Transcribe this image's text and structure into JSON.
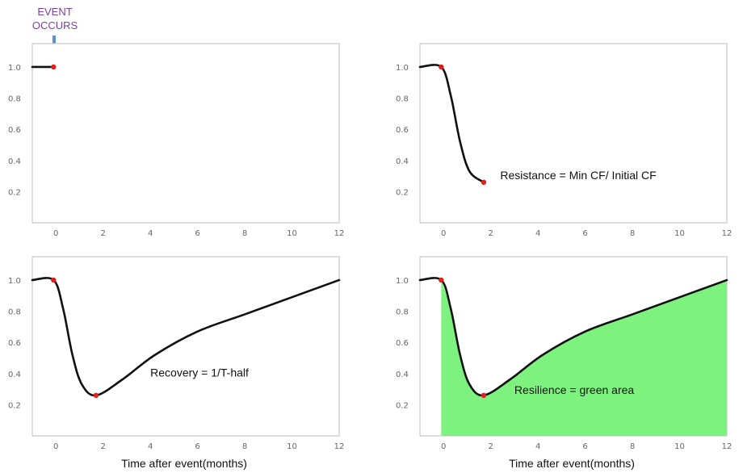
{
  "event_label_line1": "EVENT",
  "event_label_line2": "OCCURS",
  "x_caption": "Time after event(months)",
  "colors": {
    "curve": "#111111",
    "point": "#e0201c",
    "fill": "#7ef27e",
    "event_text": "#7b3fa6",
    "arrow": "#5b8fd6"
  },
  "chart_data": [
    {
      "type": "line",
      "panel": "top-left",
      "x_ticks": [
        0,
        2,
        4,
        6,
        8,
        10,
        12
      ],
      "y_ticks": [
        1.0,
        0.8,
        0.6,
        0.4,
        0.2
      ],
      "y_tick_labels": [
        "1.0",
        "0.8",
        "0.6",
        "0.4",
        "0.2"
      ],
      "xlim": [
        -1,
        12
      ],
      "ylim": [
        0,
        1.15
      ],
      "x": [
        -1,
        -0.1
      ],
      "y": [
        1.0,
        1.0
      ],
      "points": [
        {
          "x": -0.1,
          "y": 1.0
        }
      ],
      "annotation": "",
      "fill": false
    },
    {
      "type": "line",
      "panel": "top-right",
      "x_ticks": [
        0,
        2,
        4,
        6,
        8,
        10,
        12
      ],
      "y_ticks": [
        1.0,
        0.8,
        0.6,
        0.4,
        0.2
      ],
      "y_tick_labels": [
        "1.0",
        "0.8",
        "0.6",
        "0.4",
        "0.2"
      ],
      "xlim": [
        -1,
        12
      ],
      "ylim": [
        0,
        1.15
      ],
      "x": [
        -1,
        -0.1,
        0.3,
        0.7,
        1.1,
        1.7
      ],
      "y": [
        1.0,
        1.0,
        0.82,
        0.52,
        0.33,
        0.26
      ],
      "points": [
        {
          "x": -0.1,
          "y": 1.0
        },
        {
          "x": 1.7,
          "y": 0.26
        }
      ],
      "annotation": "Resistance = Min CF/ Initial CF",
      "fill": false
    },
    {
      "type": "line",
      "panel": "bottom-left",
      "x_ticks": [
        0,
        2,
        4,
        6,
        8,
        10,
        12
      ],
      "y_ticks": [
        1.0,
        0.8,
        0.6,
        0.4,
        0.2
      ],
      "y_tick_labels": [
        "1.0",
        "0.8",
        "0.6",
        "0.4",
        "0.2"
      ],
      "xlim": [
        -1,
        12
      ],
      "ylim": [
        0,
        1.15
      ],
      "x": [
        -1,
        -0.1,
        0.3,
        0.7,
        1.1,
        1.7,
        2.8,
        4.2,
        6.0,
        8.0,
        10.0,
        12.0
      ],
      "y": [
        1.0,
        1.0,
        0.82,
        0.52,
        0.33,
        0.26,
        0.36,
        0.52,
        0.67,
        0.78,
        0.89,
        1.0
      ],
      "points": [
        {
          "x": -0.1,
          "y": 1.0
        },
        {
          "x": 1.7,
          "y": 0.26
        }
      ],
      "annotation": "Recovery = 1/T-half",
      "fill": false
    },
    {
      "type": "area",
      "panel": "bottom-right",
      "x_ticks": [
        0,
        2,
        4,
        6,
        8,
        10,
        12
      ],
      "y_ticks": [
        1.0,
        0.8,
        0.6,
        0.4,
        0.2
      ],
      "y_tick_labels": [
        "1.0",
        "0.8",
        "0.6",
        "0.4",
        "0.2"
      ],
      "xlim": [
        -1,
        12
      ],
      "ylim": [
        0,
        1.15
      ],
      "x": [
        -1,
        -0.1,
        0.3,
        0.7,
        1.1,
        1.7,
        2.8,
        4.2,
        6.0,
        8.0,
        10.0,
        12.0
      ],
      "y": [
        1.0,
        1.0,
        0.82,
        0.52,
        0.33,
        0.26,
        0.36,
        0.52,
        0.67,
        0.78,
        0.89,
        1.0
      ],
      "points": [
        {
          "x": -0.1,
          "y": 1.0
        },
        {
          "x": 1.7,
          "y": 0.26
        }
      ],
      "annotation": "Resilience = green area",
      "fill": true
    }
  ]
}
